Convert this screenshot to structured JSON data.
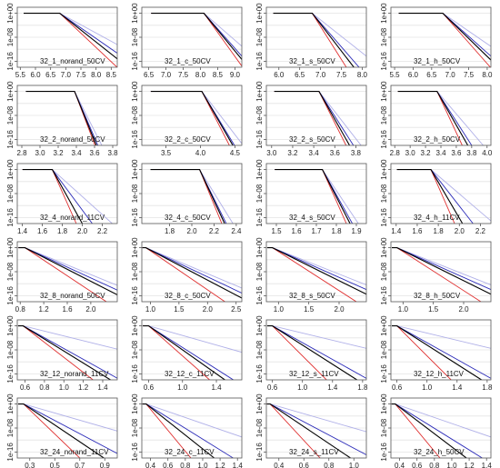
{
  "figure": {
    "y_tick_labels": [
      "1e+00",
      "1e-08",
      "1e-16"
    ]
  },
  "chart_data": [
    {
      "type": "line",
      "label": "32_1_norand_50CV",
      "xticks": [
        5.5,
        6.0,
        6.5,
        7.0,
        7.5,
        8.0,
        8.5
      ],
      "xlim": [
        5.4,
        8.7
      ],
      "ylim": [
        -18,
        2
      ],
      "flat": 0,
      "knee": 6.8,
      "slopes": [
        -9.5,
        -8.0,
        -7.0,
        -5.5
      ]
    },
    {
      "type": "line",
      "label": "32_1_c_50CV",
      "xticks": [
        6.5,
        7.0,
        7.5,
        8.0,
        8.5,
        9.0
      ],
      "xlim": [
        6.3,
        9.2
      ],
      "ylim": [
        -18,
        2
      ],
      "flat": 0,
      "knee": 8.1,
      "slopes": [
        -16.0,
        -14.0,
        -13.0,
        -10.0
      ]
    },
    {
      "type": "line",
      "label": "32_1_s_50CV",
      "xticks": [
        6.0,
        6.5,
        7.0,
        7.5,
        8.0
      ],
      "xlim": [
        5.7,
        8.1
      ],
      "ylim": [
        -18,
        2
      ],
      "flat": 0,
      "knee": 6.8,
      "slopes": [
        -22.0,
        -18.0,
        -16.0,
        -11.0
      ]
    },
    {
      "type": "line",
      "label": "32_1_h_50CV",
      "xticks": [
        5.5,
        6.0,
        6.5,
        7.0,
        7.5,
        8.0
      ],
      "xlim": [
        5.4,
        8.1
      ],
      "ylim": [
        -18,
        2
      ],
      "flat": 0,
      "knee": 6.8,
      "slopes": [
        -14.0,
        -12.0,
        -11.0,
        -8.5
      ]
    },
    {
      "type": "line",
      "label": "32_2_norand_50CV",
      "xticks": [
        2.8,
        3.0,
        3.2,
        3.4,
        3.6,
        3.8
      ],
      "xlim": [
        2.75,
        3.85
      ],
      "ylim": [
        -18,
        2
      ],
      "flat": 0,
      "knee": 3.38,
      "slopes": [
        -80.0,
        -75.0,
        -70.0,
        -60.0
      ]
    },
    {
      "type": "line",
      "label": "32_2_c_50CV",
      "xticks": [
        3.5,
        4.0,
        4.5
      ],
      "xlim": [
        3.15,
        4.6
      ],
      "ylim": [
        -18,
        2
      ],
      "flat": 0,
      "knee": 4.02,
      "slopes": [
        -45.0,
        -40.0,
        -38.0,
        -30.0
      ]
    },
    {
      "type": "line",
      "label": "32_2_s_50CV",
      "xticks": [
        3.0,
        3.2,
        3.4,
        3.6,
        3.8
      ],
      "xlim": [
        2.95,
        3.9
      ],
      "ylim": [
        -18,
        2
      ],
      "flat": 0,
      "knee": 3.45,
      "slopes": [
        -70.0,
        -62.0,
        -55.0,
        -45.0
      ]
    },
    {
      "type": "line",
      "label": "32_2_h_50CV",
      "xticks": [
        2.8,
        3.0,
        3.2,
        3.4,
        3.6,
        3.8,
        4.0
      ],
      "xlim": [
        2.75,
        4.05
      ],
      "ylim": [
        -18,
        2
      ],
      "flat": 0,
      "knee": 3.35,
      "slopes": [
        -55.0,
        -45.0,
        -40.0,
        -30.0
      ]
    },
    {
      "type": "line",
      "label": "32_4_norand_11CV",
      "xticks": [
        1.4,
        1.6,
        1.8,
        2.0,
        2.2
      ],
      "xlim": [
        1.35,
        2.35
      ],
      "ylim": [
        -18,
        2
      ],
      "flat": 0,
      "knee": 1.7,
      "slopes": [
        -75.0,
        -60.0,
        -45.0,
        -30.0
      ]
    },
    {
      "type": "line",
      "label": "32_4_c_50CV",
      "xticks": [
        1.8,
        2.0,
        2.2,
        2.4
      ],
      "xlim": [
        1.55,
        2.45
      ],
      "ylim": [
        -18,
        2
      ],
      "flat": 0,
      "knee": 2.07,
      "slopes": [
        -90.0,
        -80.0,
        -75.0,
        -60.0
      ]
    },
    {
      "type": "line",
      "label": "32_4_s_50CV",
      "xticks": [
        1.5,
        1.6,
        1.7,
        1.8,
        1.9
      ],
      "xlim": [
        1.45,
        1.95
      ],
      "ylim": [
        -18,
        2
      ],
      "flat": 0,
      "knee": 1.73,
      "slopes": [
        -150.0,
        -130.0,
        -120.0,
        -100.0
      ]
    },
    {
      "type": "line",
      "label": "32_4_h_11CV",
      "xticks": [
        1.4,
        1.6,
        1.8,
        2.0,
        2.2
      ],
      "xlim": [
        1.35,
        2.3
      ],
      "ylim": [
        -18,
        2
      ],
      "flat": 0,
      "knee": 1.73,
      "slopes": [
        -80.0,
        -60.0,
        -45.0,
        -30.0
      ]
    },
    {
      "type": "line",
      "label": "32_8_norand_50CV",
      "xticks": [
        0.8,
        1.2,
        1.6,
        2.0
      ],
      "xlim": [
        0.75,
        2.45
      ],
      "ylim": [
        -18,
        2
      ],
      "flat": 0,
      "knee": 0.88,
      "slopes": [
        -13.0,
        -10.0,
        -9.0,
        -8.0
      ]
    },
    {
      "type": "line",
      "label": "32_8_c_50CV",
      "xticks": [
        1.0,
        1.5,
        2.0,
        2.5
      ],
      "xlim": [
        0.85,
        2.6
      ],
      "ylim": [
        -18,
        2
      ],
      "flat": 0,
      "knee": 0.92,
      "slopes": [
        -13.0,
        -10.0,
        -9.0,
        -8.0
      ]
    },
    {
      "type": "line",
      "label": "32_8_s_50CV",
      "xticks": [
        1.0,
        1.5,
        2.0
      ],
      "xlim": [
        0.8,
        2.45
      ],
      "ylim": [
        -18,
        2
      ],
      "flat": 0,
      "knee": 0.9,
      "slopes": [
        -13.0,
        -10.0,
        -9.0,
        -8.0
      ]
    },
    {
      "type": "line",
      "label": "32_8_h_50CV",
      "xticks": [
        1.0,
        1.5,
        2.0
      ],
      "xlim": [
        0.8,
        2.45
      ],
      "ylim": [
        -18,
        2
      ],
      "flat": 0,
      "knee": 0.9,
      "slopes": [
        -13.0,
        -10.0,
        -9.0,
        -8.0
      ]
    },
    {
      "type": "line",
      "label": "32_12_norand_11CV",
      "xticks": [
        0.6,
        0.8,
        1.0,
        1.2,
        1.4
      ],
      "xlim": [
        0.52,
        1.55
      ],
      "ylim": [
        -18,
        2
      ],
      "flat": 0,
      "knee": 0.58,
      "slopes": [
        -25.0,
        -20.0,
        -18.0,
        -8.0
      ]
    },
    {
      "type": "line",
      "label": "32_12_c_11CV",
      "xticks": [
        0.6,
        1.0,
        1.4
      ],
      "xlim": [
        0.52,
        1.7
      ],
      "ylim": [
        -18,
        2
      ],
      "flat": 0,
      "knee": 0.6,
      "slopes": [
        -25.0,
        -20.0,
        -18.0,
        -8.0
      ]
    },
    {
      "type": "line",
      "label": "32_12_s_11CV",
      "xticks": [
        0.6,
        1.0,
        1.4,
        1.8
      ],
      "xlim": [
        0.52,
        1.85
      ],
      "ylim": [
        -18,
        2
      ],
      "flat": 0,
      "knee": 0.6,
      "slopes": [
        -25.0,
        -16.0,
        -14.0,
        -6.0
      ]
    },
    {
      "type": "line",
      "label": "32_12_h_11CV",
      "xticks": [
        0.6,
        1.0,
        1.4,
        1.8
      ],
      "xlim": [
        0.52,
        1.85
      ],
      "ylim": [
        -18,
        2
      ],
      "flat": 0,
      "knee": 0.6,
      "slopes": [
        -25.0,
        -16.0,
        -14.0,
        -6.0
      ]
    },
    {
      "type": "line",
      "label": "32_24_norand_11CV",
      "xticks": [
        0.3,
        0.5,
        0.7,
        0.9
      ],
      "xlim": [
        0.2,
        1.0
      ],
      "ylim": [
        -18,
        2
      ],
      "flat": 0,
      "knee": 0.25,
      "slopes": [
        -40.0,
        -28.0,
        -22.0,
        -12.0
      ]
    },
    {
      "type": "line",
      "label": "32_24_c_11CV",
      "xticks": [
        0.4,
        0.6,
        0.8,
        1.0,
        1.2,
        1.4
      ],
      "xlim": [
        0.3,
        1.45
      ],
      "ylim": [
        -18,
        2
      ],
      "flat": 0,
      "knee": 0.35,
      "slopes": [
        -35.0,
        -23.0,
        -18.0,
        -10.0
      ]
    },
    {
      "type": "line",
      "label": "32_24_s_11CV",
      "xticks": [
        0.4,
        0.6,
        0.8,
        1.0
      ],
      "xlim": [
        0.3,
        1.1
      ],
      "ylim": [
        -18,
        2
      ],
      "flat": 0,
      "knee": 0.33,
      "slopes": [
        -45.0,
        -28.0,
        -22.0,
        -12.0
      ]
    },
    {
      "type": "line",
      "label": "32_24_h_50CV",
      "xticks": [
        0.4,
        0.6,
        0.8,
        1.0,
        1.2,
        1.4
      ],
      "xlim": [
        0.3,
        1.45
      ],
      "ylim": [
        -18,
        2
      ],
      "flat": 0,
      "knee": 0.35,
      "slopes": [
        -35.0,
        -22.0,
        -18.0,
        -10.0
      ]
    }
  ],
  "series_colors": [
    "#e03030",
    "#000000",
    "#2a2ab8",
    "#b0b0e8"
  ]
}
